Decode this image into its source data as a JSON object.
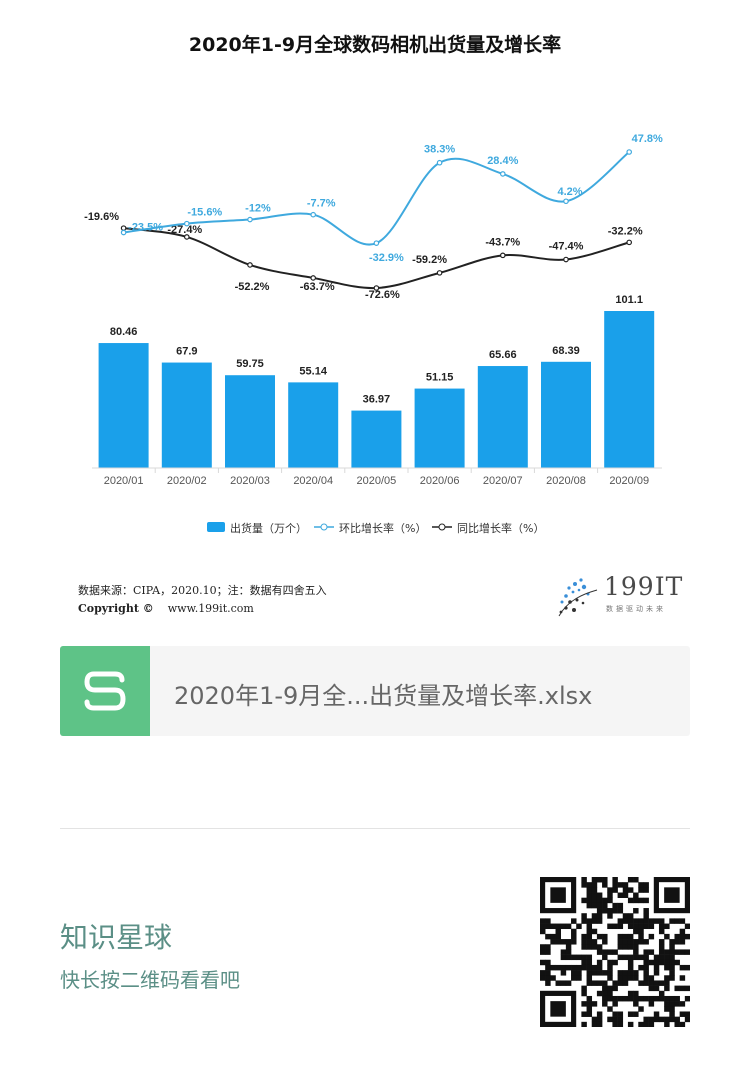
{
  "chart_data": {
    "type": "bar",
    "title": "2020年1-9月全球数码相机出货量及增长率",
    "categories": [
      "2020/01",
      "2020/02",
      "2020/03",
      "2020/04",
      "2020/05",
      "2020/06",
      "2020/07",
      "2020/08",
      "2020/09"
    ],
    "series": [
      {
        "name": "出货量（万个）",
        "type": "bar",
        "values": [
          80.46,
          67.9,
          59.75,
          55.14,
          36.97,
          51.15,
          65.66,
          68.39,
          101.1
        ],
        "labels": [
          "80.46",
          "67.9",
          "59.75",
          "55.14",
          "36.97",
          "51.15",
          "65.66",
          "68.39",
          "101.1"
        ]
      },
      {
        "name": "环比增长率（%）",
        "type": "line",
        "values": [
          -23.5,
          -15.6,
          -12,
          -7.7,
          -32.9,
          38.3,
          28.4,
          4.2,
          47.8
        ],
        "labels": [
          "-23.5%",
          "-15.6%",
          "-12%",
          "-7.7%",
          "-32.9%",
          "38.3%",
          "28.4%",
          "4.2%",
          "47.8%"
        ]
      },
      {
        "name": "同比增长率（%）",
        "type": "line",
        "values": [
          -19.6,
          -27.4,
          -52.2,
          -63.7,
          -72.6,
          -59.2,
          -43.7,
          -47.4,
          -32.2
        ],
        "labels": [
          "-19.6%",
          "-27.4%",
          "-52.2%",
          "-63.7%",
          "-72.6%",
          "-59.2%",
          "-43.7%",
          "-47.4%",
          "-32.2%"
        ]
      }
    ],
    "colors": {
      "bar": "#1aa0ea",
      "mom": "#3fa9de",
      "yoy": "#222222"
    },
    "grid": false,
    "legend": "bottom"
  },
  "footer": {
    "source": "数据来源：CIPA，2020.10；注：数据有四舍五入",
    "copyright_label": "Copyright ©",
    "website": "www.199it.com",
    "brand": "199IT",
    "tagline": "数据驱动未来"
  },
  "file_card": {
    "icon_letter": "S",
    "filename": "2020年1-9月全...出货量及增长率.xlsx",
    "color": "#5ec387"
  },
  "promo": {
    "name": "知识星球",
    "hint": "快长按二维码看看吧"
  }
}
